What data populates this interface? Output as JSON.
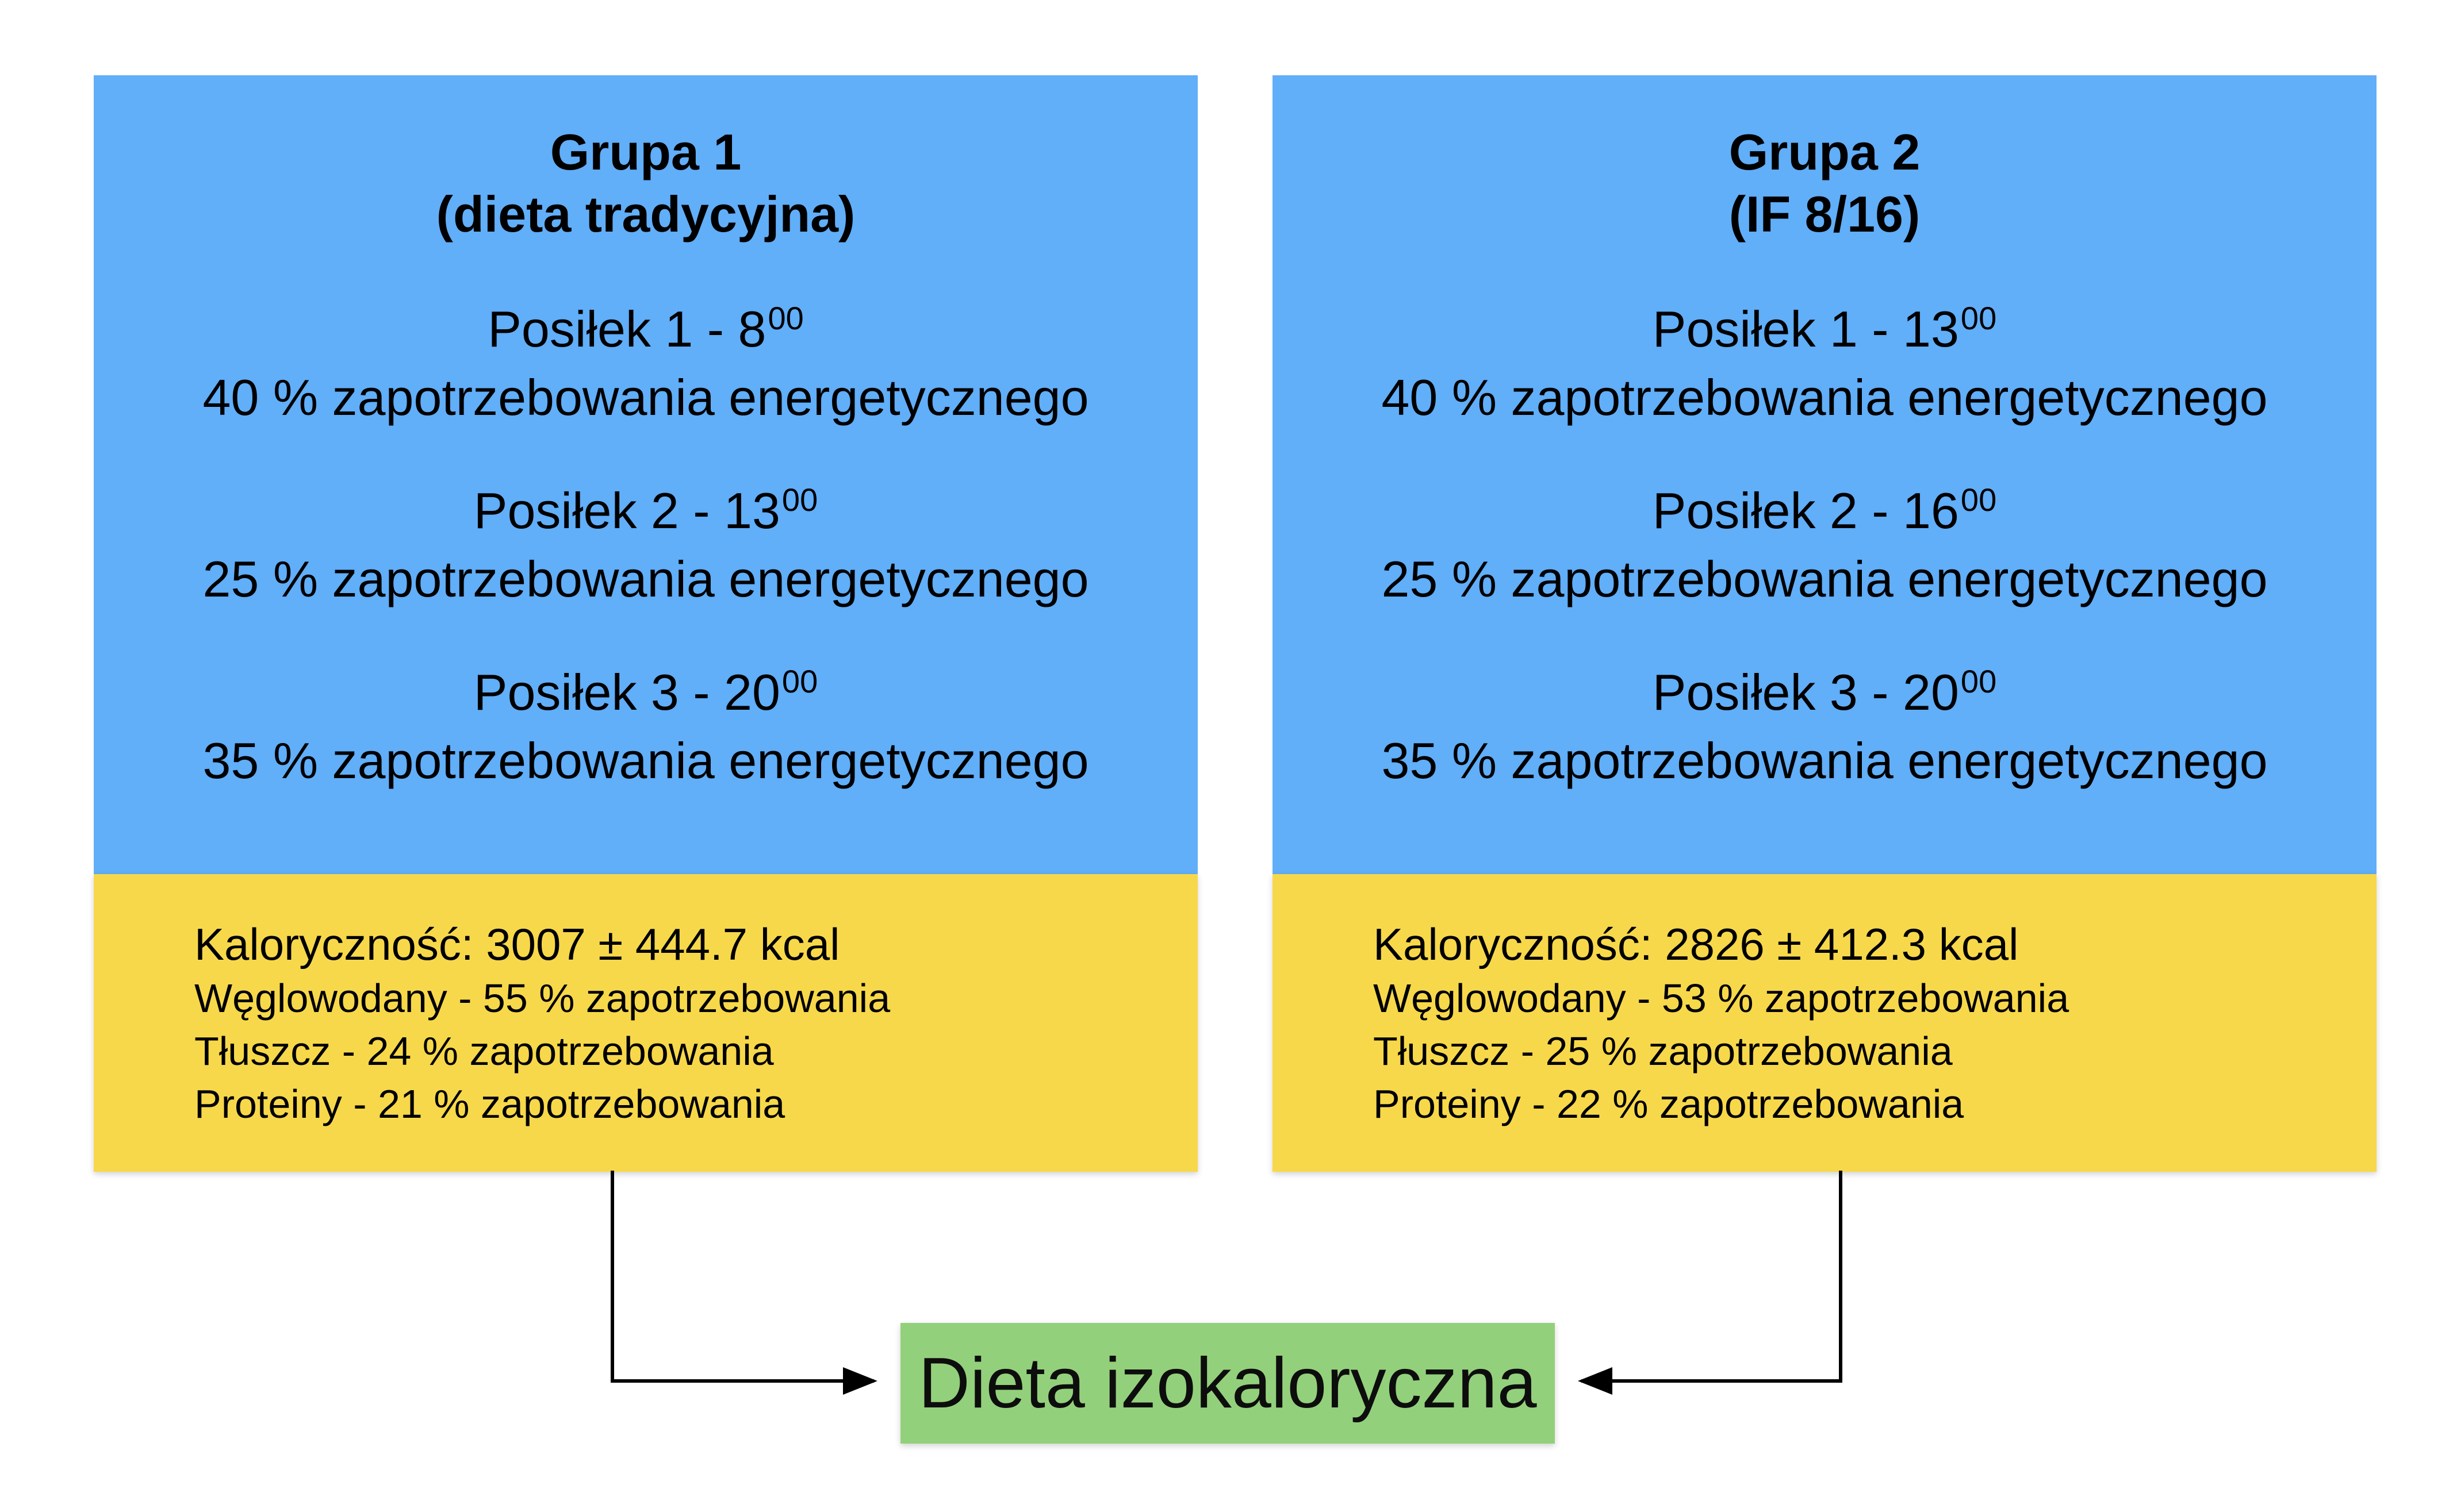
{
  "colors": {
    "blue_box": "#61aef9",
    "yellow_box": "#f7d84a",
    "green_box": "#93d07b",
    "arrow": "#000000"
  },
  "groups": [
    {
      "title_line1": "Grupa 1",
      "title_line2": "(dieta tradycyjna)",
      "meals": [
        {
          "label": "Posiłek 1 - 8",
          "sup": "00",
          "share": "40 % zapotrzebowania energetycznego"
        },
        {
          "label": "Posiłek 2 - 13",
          "sup": "00",
          "share": "25 % zapotrzebowania energetycznego"
        },
        {
          "label": "Posiłek 3 - 20",
          "sup": "00",
          "share": "35 % zapotrzebowania energetycznego"
        }
      ],
      "summary": {
        "calories": "Kaloryczność: 3007 ± 444.7 kcal",
        "carbs": "Węglowodany - 55 % zapotrzebowania",
        "fat": "Tłuszcz - 24 % zapotrzebowania",
        "protein": "Proteiny - 21 % zapotrzebowania"
      }
    },
    {
      "title_line1": "Grupa 2",
      "title_line2": "(IF 8/16)",
      "meals": [
        {
          "label": "Posiłek 1 - 13",
          "sup": "00",
          "share": "40 % zapotrzebowania energetycznego"
        },
        {
          "label": "Posiłek 2 - 16",
          "sup": "00",
          "share": "25 % zapotrzebowania energetycznego"
        },
        {
          "label": "Posiłek 3 - 20",
          "sup": "00",
          "share": "35 % zapotrzebowania energetycznego"
        }
      ],
      "summary": {
        "calories": "Kaloryczność: 2826 ± 412.3 kcal",
        "carbs": "Węglowodany - 53 % zapotrzebowania",
        "fat": "Tłuszcz - 25 % zapotrzebowania",
        "protein": "Proteiny - 22 % zapotrzebowania"
      }
    }
  ],
  "target": {
    "label": "Dieta izokaloryczna"
  }
}
